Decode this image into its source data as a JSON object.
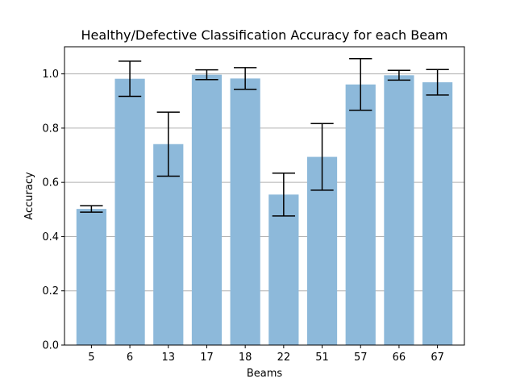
{
  "chart_data": {
    "type": "bar",
    "title": "Healthy/Defective Classification Accuracy for each Beam",
    "xlabel": "Beams",
    "ylabel": "Accuracy",
    "categories": [
      "5",
      "6",
      "13",
      "17",
      "18",
      "22",
      "51",
      "57",
      "66",
      "67"
    ],
    "values": [
      0.502,
      0.982,
      0.741,
      0.997,
      0.983,
      0.555,
      0.694,
      0.961,
      0.995,
      0.969
    ],
    "error": [
      0.012,
      0.065,
      0.118,
      0.018,
      0.04,
      0.079,
      0.123,
      0.095,
      0.018,
      0.047
    ],
    "ylim": [
      0,
      1.1
    ],
    "yticks": [
      "0.0",
      "0.2",
      "0.4",
      "0.6",
      "0.8",
      "1.0"
    ],
    "grid": "y",
    "bar_color": "#8db9da",
    "error_color": "#000000",
    "grid_color": "#b0b0b0"
  }
}
